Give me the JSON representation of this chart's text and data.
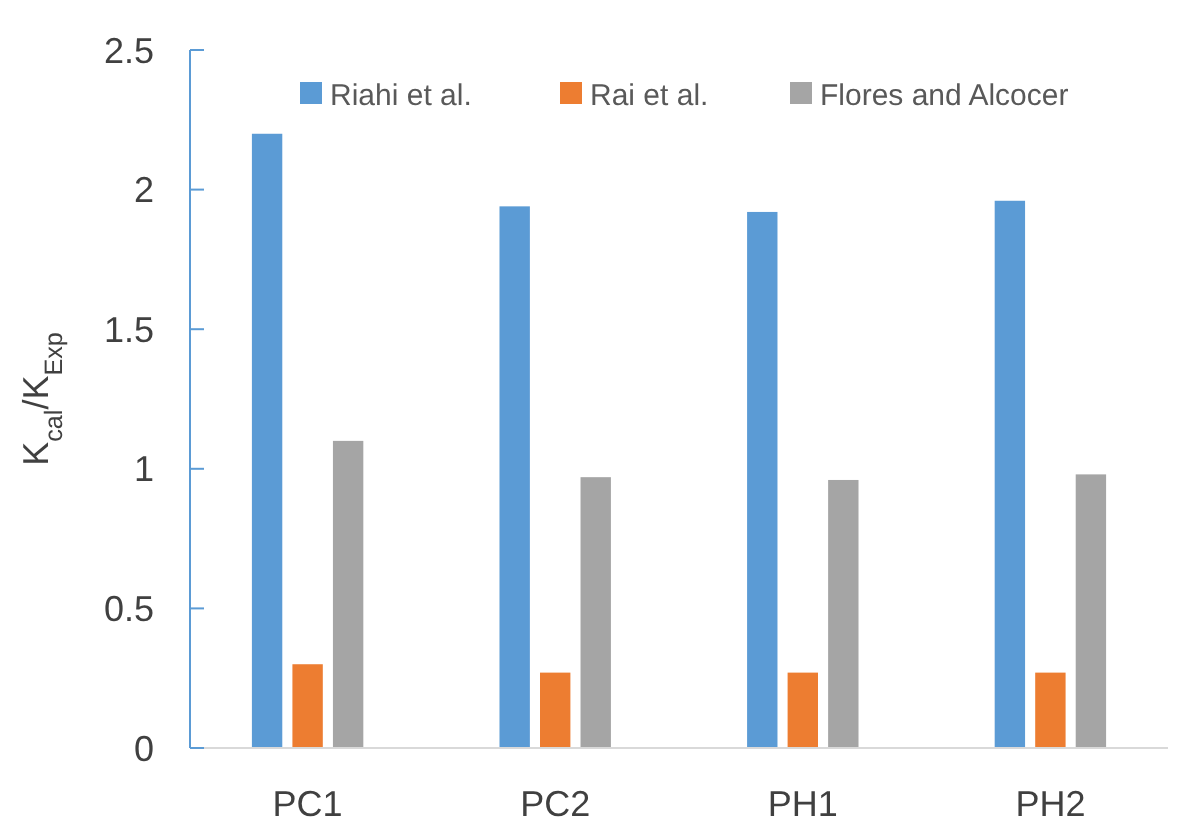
{
  "chart_data": {
    "type": "bar",
    "ylabel": "K$_{cal}$/K$_{Exp}$",
    "categories": [
      "PC1",
      "PC2",
      "PH1",
      "PH2"
    ],
    "series": [
      {
        "name": "Riahi et al.",
        "color": "#5b9bd5",
        "values": [
          2.2,
          1.94,
          1.92,
          1.96
        ]
      },
      {
        "name": "Rai et al.",
        "color": "#ed7d31",
        "values": [
          0.3,
          0.27,
          0.27,
          0.27
        ]
      },
      {
        "name": "Flores and Alcocer",
        "color": "#a5a5a5",
        "values": [
          1.1,
          0.97,
          0.96,
          0.98
        ]
      }
    ],
    "ylim": [
      0,
      2.5
    ],
    "yticks": [
      0,
      0.5,
      1,
      1.5,
      2,
      2.5
    ],
    "grid": false,
    "legend": "top"
  }
}
